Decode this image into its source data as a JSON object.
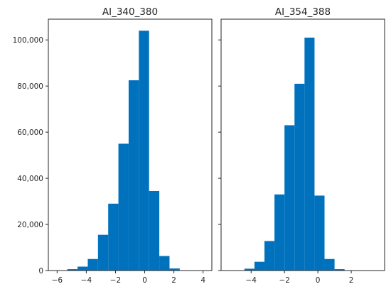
{
  "chart_data": [
    {
      "type": "bar",
      "title": "AI_340_380",
      "xlabel": "",
      "ylabel": "",
      "bin_edges": [
        -6.0,
        -5.3,
        -4.6,
        -3.9,
        -3.2,
        -2.5,
        -1.8,
        -1.1,
        -0.4,
        0.3,
        1.0,
        1.7,
        2.4,
        3.1,
        3.8
      ],
      "values": [
        100,
        600,
        1700,
        5000,
        15500,
        29000,
        55000,
        82500,
        104000,
        34500,
        6300,
        900,
        100,
        20
      ],
      "xlim": [
        -6.6,
        4.6
      ],
      "ylim": [
        0,
        109000
      ],
      "xticks": [
        -6,
        -4,
        -2,
        0,
        2,
        4
      ],
      "xtick_labels": [
        "−6",
        "−4",
        "−2",
        "0",
        "2",
        "4"
      ],
      "yticks": [
        0,
        20000,
        40000,
        60000,
        80000,
        100000
      ],
      "ytick_labels": [
        "0",
        "20,000",
        "40,000",
        "60,000",
        "80,000",
        "100,000"
      ],
      "bar_color": "#0072bd",
      "grid": false
    },
    {
      "type": "bar",
      "title": "AI_354_388",
      "xlabel": "",
      "ylabel": "",
      "bin_edges": [
        -5.0,
        -4.4,
        -3.8,
        -3.2,
        -2.6,
        -2.0,
        -1.4,
        -0.8,
        -0.2,
        0.4,
        1.0,
        1.6,
        2.2,
        2.8
      ],
      "values": [
        100,
        800,
        3800,
        12800,
        33000,
        63000,
        81000,
        101000,
        32500,
        5000,
        600,
        50,
        10
      ],
      "xlim": [
        -5.8,
        4.0
      ],
      "ylim": [
        0,
        109000
      ],
      "xticks": [
        -4,
        -2,
        0,
        2
      ],
      "xtick_labels": [
        "−4",
        "−2",
        "0",
        "2"
      ],
      "yticks": [
        0,
        20000,
        40000,
        60000,
        80000,
        100000
      ],
      "ytick_labels": [],
      "bar_color": "#0072bd",
      "grid": false
    }
  ]
}
